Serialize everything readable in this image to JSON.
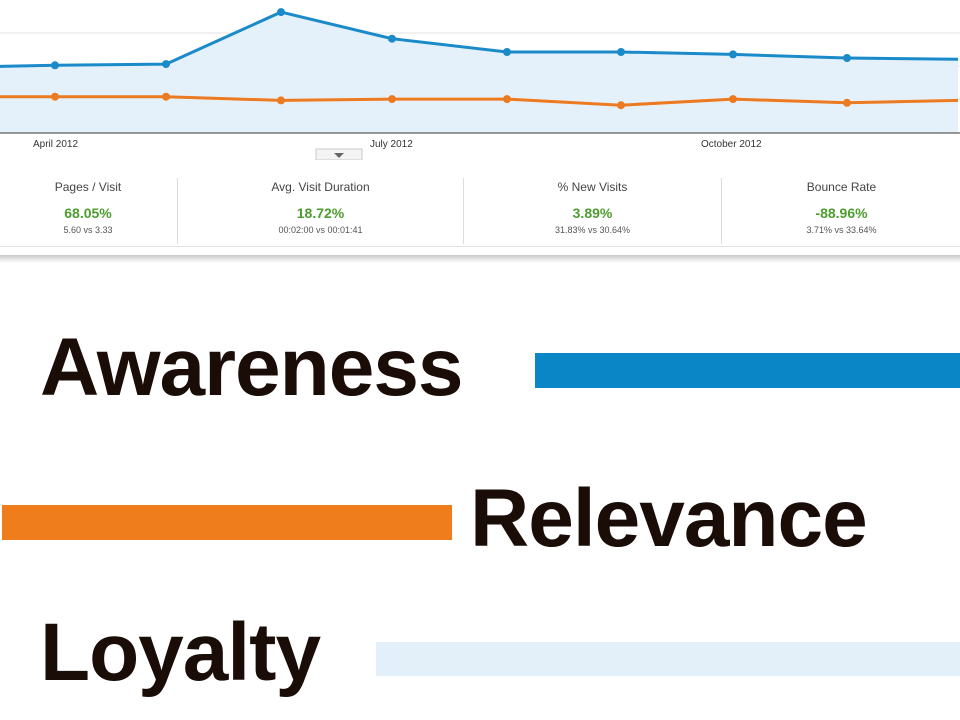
{
  "chart_data": {
    "type": "line",
    "x_tick_labels": [
      "April 2012",
      "July 2012",
      "October 2012"
    ],
    "series": [
      {
        "color": "#1a8ac9",
        "fill": "#e5f1fa",
        "values": [
          55,
          56,
          57,
          100,
          78,
          67,
          67,
          65,
          62,
          61
        ]
      },
      {
        "color": "#ec7a21",
        "values": [
          30,
          30,
          30,
          27,
          28,
          28,
          23,
          28,
          25,
          27
        ]
      }
    ],
    "ylim": [
      0,
      110
    ],
    "grid": true
  },
  "metrics": [
    {
      "name": "Pages / Visit",
      "change": "68.05%",
      "compare": "5.60 vs 3.33"
    },
    {
      "name": "Avg. Visit Duration",
      "change": "18.72%",
      "compare": "00:02:00 vs 00:01:41"
    },
    {
      "name": "% New Visits",
      "change": "3.89%",
      "compare": "31.83% vs 30.64%"
    },
    {
      "name": "Bounce Rate",
      "change": "-88.96%",
      "compare": "3.71% vs 33.64%"
    }
  ],
  "words": {
    "awareness": "Awareness",
    "relevance": "Relevance",
    "loyalty": "Loyalty"
  },
  "colors": {
    "positive_change": "#4d9c2e",
    "awareness_bar": "#0a86c6",
    "relevance_bar": "#ef7d1c",
    "loyalty_bar": "#e3f0fa",
    "word_text": "#1a0d08"
  }
}
